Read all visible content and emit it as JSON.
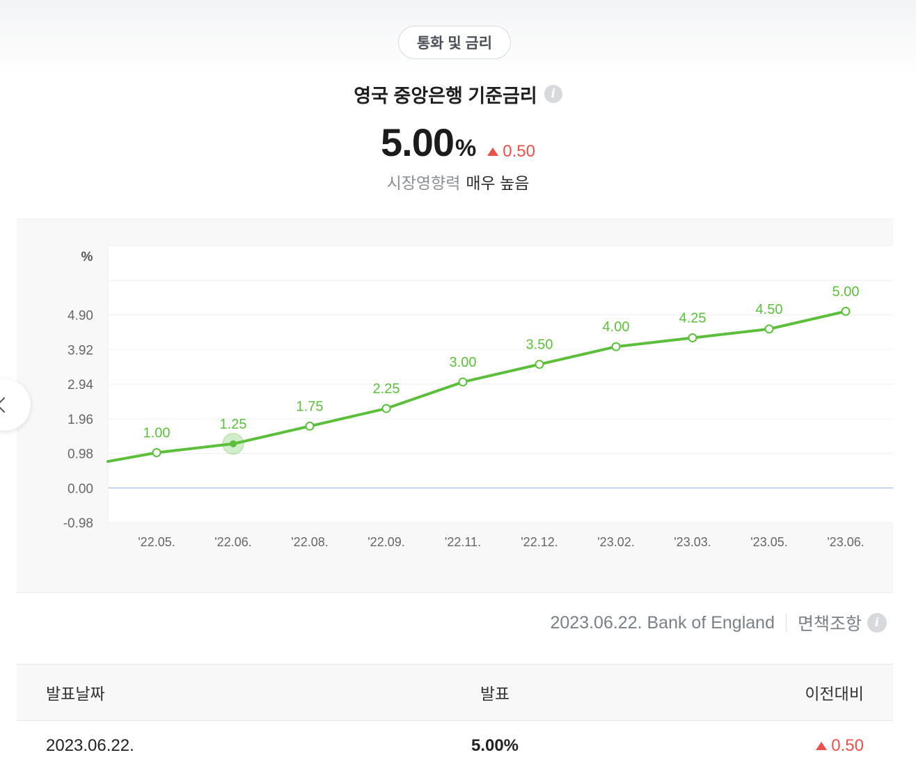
{
  "header": {
    "category_label": "통화 및 금리",
    "title": "영국 중앙은행 기준금리",
    "value": "5.00",
    "unit": "%",
    "change": "0.50",
    "impact_label": "시장영향력",
    "impact_value": "매우 높음"
  },
  "colors": {
    "line": "#5cbf3c",
    "up": "#e8524a",
    "zero_line": "#b9c5ee"
  },
  "chart_data": {
    "type": "line",
    "ylabel": "%",
    "y_ticks": [
      "4.90",
      "3.92",
      "2.94",
      "1.96",
      "0.98",
      "0.00",
      "-0.98"
    ],
    "y_tick_values": [
      4.9,
      3.92,
      2.94,
      1.96,
      0.98,
      0.0,
      -0.98
    ],
    "ylim": [
      -0.98,
      6.86
    ],
    "categories": [
      "'22.05.",
      "'22.06.",
      "'22.08.",
      "'22.09.",
      "'22.11.",
      "'22.12.",
      "'23.02.",
      "'23.03.",
      "'23.05.",
      "'23.06."
    ],
    "values": [
      1.0,
      1.25,
      1.75,
      2.25,
      3.0,
      3.5,
      4.0,
      4.25,
      4.5,
      5.0
    ],
    "value_labels": [
      "1.00",
      "1.25",
      "1.75",
      "2.25",
      "3.00",
      "3.50",
      "4.00",
      "4.25",
      "4.50",
      "5.00"
    ],
    "previous_value": 0.75,
    "highlighted_index": 1,
    "grid": true
  },
  "source": {
    "text": "2023.06.22. Bank of England",
    "disclaimer": "면책조항"
  },
  "table": {
    "headers": [
      "발표날짜",
      "발표",
      "이전대비"
    ],
    "rows": [
      {
        "date": "2023.06.22.",
        "value": "5.00%",
        "change": "0.50"
      }
    ]
  }
}
